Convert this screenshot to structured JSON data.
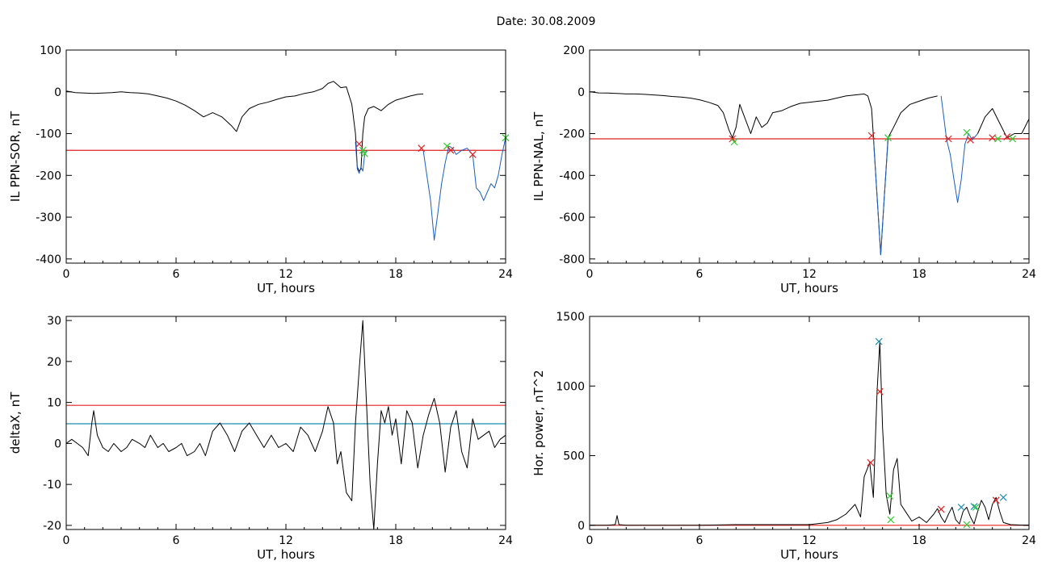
{
  "title": "Date:  30.08.2009",
  "chart_data": [
    {
      "id": "p1",
      "type": "line",
      "xlabel": "UT, hours",
      "ylabel": "IL PPN-SOR, nT",
      "xlim": [
        0,
        24
      ],
      "ylim": [
        -410,
        100
      ],
      "xticks": [
        0,
        6,
        12,
        18,
        24
      ],
      "yticks": [
        100,
        0,
        -100,
        -200,
        -300,
        -400
      ],
      "series": [
        {
          "color": "#000000",
          "x": [
            0,
            0.5,
            1,
            1.5,
            2,
            2.5,
            3,
            3.5,
            4,
            4.5,
            5,
            5.5,
            6,
            6.5,
            7,
            7.5,
            8,
            8.5,
            9,
            9.3,
            9.6,
            10,
            10.5,
            11,
            11.5,
            12,
            12.5,
            13,
            13.5,
            14,
            14.3,
            14.6,
            15,
            15.3,
            15.6,
            15.8,
            15.9,
            16.0,
            16.1,
            16.2,
            16.3,
            16.5,
            16.8,
            17.2,
            17.6,
            18,
            18.4,
            18.8,
            19.2,
            19.5
          ],
          "y": [
            2,
            -2,
            -3,
            -4,
            -3,
            -2,
            0,
            -2,
            -3,
            -5,
            -10,
            -15,
            -22,
            -32,
            -45,
            -60,
            -50,
            -60,
            -80,
            -95,
            -60,
            -40,
            -30,
            -25,
            -18,
            -12,
            -10,
            -4,
            0,
            8,
            20,
            25,
            10,
            12,
            -30,
            -100,
            -180,
            -190,
            -185,
            -100,
            -60,
            -40,
            -35,
            -45,
            -30,
            -20,
            -15,
            -10,
            -6,
            -5
          ]
        },
        {
          "color": "#1a5ec8",
          "x": [
            15.8,
            15.9,
            16.0,
            16.1,
            16.2,
            16.3,
            16.4
          ],
          "y": [
            -120,
            -185,
            -195,
            -180,
            -190,
            -150,
            -140
          ]
        },
        {
          "color": "#1a5ec8",
          "x": [
            19.5,
            19.7,
            19.9,
            20.1,
            20.3,
            20.5,
            20.7,
            20.9,
            21.1,
            21.3,
            21.6,
            21.9,
            22.2,
            22.4,
            22.6,
            22.8,
            23.0,
            23.2,
            23.4,
            23.6,
            23.8,
            24.0
          ],
          "y": [
            -140,
            -200,
            -260,
            -355,
            -290,
            -220,
            -170,
            -130,
            -135,
            -150,
            -140,
            -135,
            -150,
            -230,
            -240,
            -260,
            -240,
            -220,
            -230,
            -200,
            -150,
            -110
          ]
        }
      ],
      "hlines": [
        {
          "y": -140,
          "color": "#e02020"
        }
      ],
      "markers": [
        {
          "x": 16.0,
          "y": -125,
          "color": "#e02020"
        },
        {
          "x": 16.2,
          "y": -140,
          "color": "#2ecc2e"
        },
        {
          "x": 16.3,
          "y": -148,
          "color": "#2ecc2e"
        },
        {
          "x": 19.4,
          "y": -135,
          "color": "#e02020"
        },
        {
          "x": 20.8,
          "y": -130,
          "color": "#2ecc2e"
        },
        {
          "x": 21.0,
          "y": -140,
          "color": "#e02020"
        },
        {
          "x": 22.2,
          "y": -150,
          "color": "#e02020"
        },
        {
          "x": 24.0,
          "y": -110,
          "color": "#2ecc2e"
        }
      ]
    },
    {
      "id": "p2",
      "type": "line",
      "xlabel": "UT, hours",
      "ylabel": "IL PPN-NAL, nT",
      "xlim": [
        0,
        24
      ],
      "ylim": [
        -820,
        200
      ],
      "xticks": [
        0,
        6,
        12,
        18,
        24
      ],
      "yticks": [
        200,
        0,
        -200,
        -400,
        -600,
        -800
      ],
      "series": [
        {
          "color": "#000000",
          "x": [
            0,
            0.5,
            1,
            1.5,
            2,
            2.5,
            3,
            3.5,
            4,
            4.5,
            5,
            5.5,
            6,
            6.5,
            7,
            7.3,
            7.6,
            7.8,
            8.0,
            8.2,
            8.5,
            8.8,
            9.1,
            9.4,
            9.7,
            10,
            10.5,
            11,
            11.5,
            12,
            12.5,
            13,
            13.5,
            14,
            14.5,
            15,
            15.2,
            15.4,
            15.5,
            15.7,
            15.9,
            16.1,
            16.3,
            16.6,
            17,
            17.5,
            18,
            18.5,
            19
          ],
          "y": [
            0,
            -5,
            -6,
            -8,
            -10,
            -10,
            -12,
            -15,
            -18,
            -22,
            -25,
            -30,
            -38,
            -50,
            -65,
            -100,
            -180,
            -220,
            -170,
            -60,
            -130,
            -200,
            -120,
            -170,
            -150,
            -100,
            -90,
            -70,
            -55,
            -50,
            -45,
            -40,
            -30,
            -20,
            -15,
            -10,
            -20,
            -80,
            -210,
            -500,
            -780,
            -500,
            -220,
            -170,
            -100,
            -60,
            -45,
            -30,
            -20
          ]
        },
        {
          "color": "#1a5ec8",
          "x": [
            15.5,
            15.7,
            15.9,
            16.1,
            16.3
          ],
          "y": [
            -220,
            -500,
            -780,
            -500,
            -230
          ]
        },
        {
          "color": "#1a5ec8",
          "x": [
            19.2,
            19.5,
            19.7,
            19.9,
            20.1,
            20.3,
            20.5,
            20.7,
            20.9,
            21.2
          ],
          "y": [
            -20,
            -230,
            -300,
            -420,
            -530,
            -420,
            -250,
            -200,
            -230,
            -200
          ]
        },
        {
          "color": "#000000",
          "x": [
            21.2,
            21.6,
            22.0,
            22.4,
            22.8,
            23.2,
            23.6,
            24.0
          ],
          "y": [
            -200,
            -120,
            -80,
            -150,
            -220,
            -200,
            -200,
            -130
          ]
        }
      ],
      "hlines": [
        {
          "y": -225,
          "color": "#e02020"
        }
      ],
      "markers": [
        {
          "x": 7.8,
          "y": -225,
          "color": "#e02020"
        },
        {
          "x": 7.9,
          "y": -240,
          "color": "#2ecc2e"
        },
        {
          "x": 15.4,
          "y": -210,
          "color": "#e02020"
        },
        {
          "x": 16.3,
          "y": -220,
          "color": "#2ecc2e"
        },
        {
          "x": 19.6,
          "y": -225,
          "color": "#e02020"
        },
        {
          "x": 20.6,
          "y": -195,
          "color": "#2ecc2e"
        },
        {
          "x": 20.8,
          "y": -230,
          "color": "#e02020"
        },
        {
          "x": 22.0,
          "y": -220,
          "color": "#e02020"
        },
        {
          "x": 22.3,
          "y": -225,
          "color": "#2ecc2e"
        },
        {
          "x": 22.8,
          "y": -215,
          "color": "#e02020"
        },
        {
          "x": 23.1,
          "y": -225,
          "color": "#2ecc2e"
        }
      ]
    },
    {
      "id": "p3",
      "type": "line",
      "xlabel": "UT, hours",
      "ylabel": "deltaX, nT",
      "xlim": [
        0,
        24
      ],
      "ylim": [
        -21,
        31
      ],
      "xticks": [
        0,
        6,
        12,
        18,
        24
      ],
      "yticks": [
        30,
        20,
        10,
        0,
        -10,
        -20
      ],
      "series": [
        {
          "color": "#000000",
          "x": [
            0,
            0.3,
            0.6,
            0.9,
            1.2,
            1.4,
            1.5,
            1.7,
            2.0,
            2.3,
            2.6,
            3.0,
            3.3,
            3.6,
            4.0,
            4.3,
            4.6,
            5.0,
            5.3,
            5.6,
            6.0,
            6.3,
            6.6,
            7.0,
            7.3,
            7.6,
            8.0,
            8.4,
            8.8,
            9.2,
            9.6,
            10.0,
            10.4,
            10.8,
            11.2,
            11.6,
            12.0,
            12.4,
            12.8,
            13.2,
            13.6,
            14.0,
            14.3,
            14.6,
            14.8,
            15.0,
            15.3,
            15.6,
            15.8,
            16.0,
            16.2,
            16.4,
            16.6,
            16.8,
            17.0,
            17.2,
            17.4,
            17.6,
            17.8,
            18.0,
            18.3,
            18.6,
            18.9,
            19.2,
            19.5,
            19.8,
            20.1,
            20.4,
            20.7,
            21.0,
            21.3,
            21.6,
            21.9,
            22.2,
            22.5,
            22.8,
            23.1,
            23.4,
            23.7,
            24.0
          ],
          "y": [
            0,
            1,
            0,
            -1,
            -3,
            5,
            8,
            2,
            -1,
            -2,
            0,
            -2,
            -1,
            1,
            0,
            -1,
            2,
            -1,
            0,
            -2,
            -1,
            0,
            -3,
            -2,
            0,
            -3,
            3,
            5,
            2,
            -2,
            3,
            5,
            2,
            -1,
            2,
            -1,
            0,
            -2,
            4,
            2,
            -2,
            3,
            9,
            5,
            -5,
            -2,
            -12,
            -14,
            5,
            18,
            30,
            10,
            -10,
            -21,
            -5,
            8,
            5,
            9,
            2,
            6,
            -5,
            8,
            5,
            -6,
            2,
            7,
            11,
            5,
            -7,
            4,
            8,
            -2,
            -6,
            6,
            1,
            2,
            3,
            -1,
            1,
            2
          ]
        }
      ],
      "hlines": [
        {
          "y": 9.3,
          "color": "#e02020"
        },
        {
          "y": 4.8,
          "color": "#1a8fb0"
        }
      ],
      "markers": []
    },
    {
      "id": "p4",
      "type": "line",
      "xlabel": "UT, hours",
      "ylabel": "Hor. power, nT^2",
      "xlim": [
        0,
        24
      ],
      "ylim": [
        -30,
        1500
      ],
      "xticks": [
        0,
        6,
        12,
        18,
        24
      ],
      "yticks": [
        1500,
        1000,
        500,
        0
      ],
      "series": [
        {
          "color": "#000000",
          "x": [
            0,
            1.0,
            1.4,
            1.5,
            1.6,
            2.0,
            4,
            6,
            8,
            10,
            12,
            13.0,
            13.5,
            14.0,
            14.5,
            14.8,
            15.0,
            15.3,
            15.5,
            15.7,
            15.85,
            16.0,
            16.2,
            16.4,
            16.6,
            16.8,
            17.0,
            17.3,
            17.6,
            18.0,
            18.4,
            18.8,
            19.0,
            19.2,
            19.4,
            19.6,
            19.8,
            20.0,
            20.2,
            20.4,
            20.6,
            20.8,
            21.0,
            21.2,
            21.4,
            21.6,
            21.8,
            22.0,
            22.2,
            22.4,
            22.6,
            23.0,
            23.5,
            24.0
          ],
          "y": [
            0,
            0,
            5,
            70,
            5,
            0,
            0,
            0,
            5,
            5,
            5,
            20,
            40,
            80,
            150,
            60,
            350,
            450,
            200,
            960,
            1320,
            700,
            220,
            80,
            400,
            480,
            150,
            90,
            30,
            60,
            20,
            80,
            120,
            60,
            20,
            80,
            130,
            40,
            10,
            100,
            130,
            60,
            10,
            100,
            180,
            130,
            40,
            150,
            200,
            100,
            20,
            5,
            2,
            2
          ]
        }
      ],
      "hlines": [
        {
          "y": 0,
          "color": "#e02020"
        }
      ],
      "markers": [
        {
          "x": 15.8,
          "y": 1320,
          "color": "#1a8fb0"
        },
        {
          "x": 15.85,
          "y": 960,
          "color": "#e02020"
        },
        {
          "x": 15.35,
          "y": 450,
          "color": "#e02020"
        },
        {
          "x": 16.4,
          "y": 210,
          "color": "#2ecc2e"
        },
        {
          "x": 16.45,
          "y": 40,
          "color": "#2ecc2e"
        },
        {
          "x": 19.2,
          "y": 115,
          "color": "#e02020"
        },
        {
          "x": 20.3,
          "y": 130,
          "color": "#1a8fb0"
        },
        {
          "x": 20.6,
          "y": 5,
          "color": "#2ecc2e"
        },
        {
          "x": 21.0,
          "y": 135,
          "color": "#1a8fb0"
        },
        {
          "x": 21.1,
          "y": 130,
          "color": "#2ecc2e"
        },
        {
          "x": 22.2,
          "y": 180,
          "color": "#e02020"
        },
        {
          "x": 22.6,
          "y": 200,
          "color": "#1a8fb0"
        }
      ]
    }
  ]
}
